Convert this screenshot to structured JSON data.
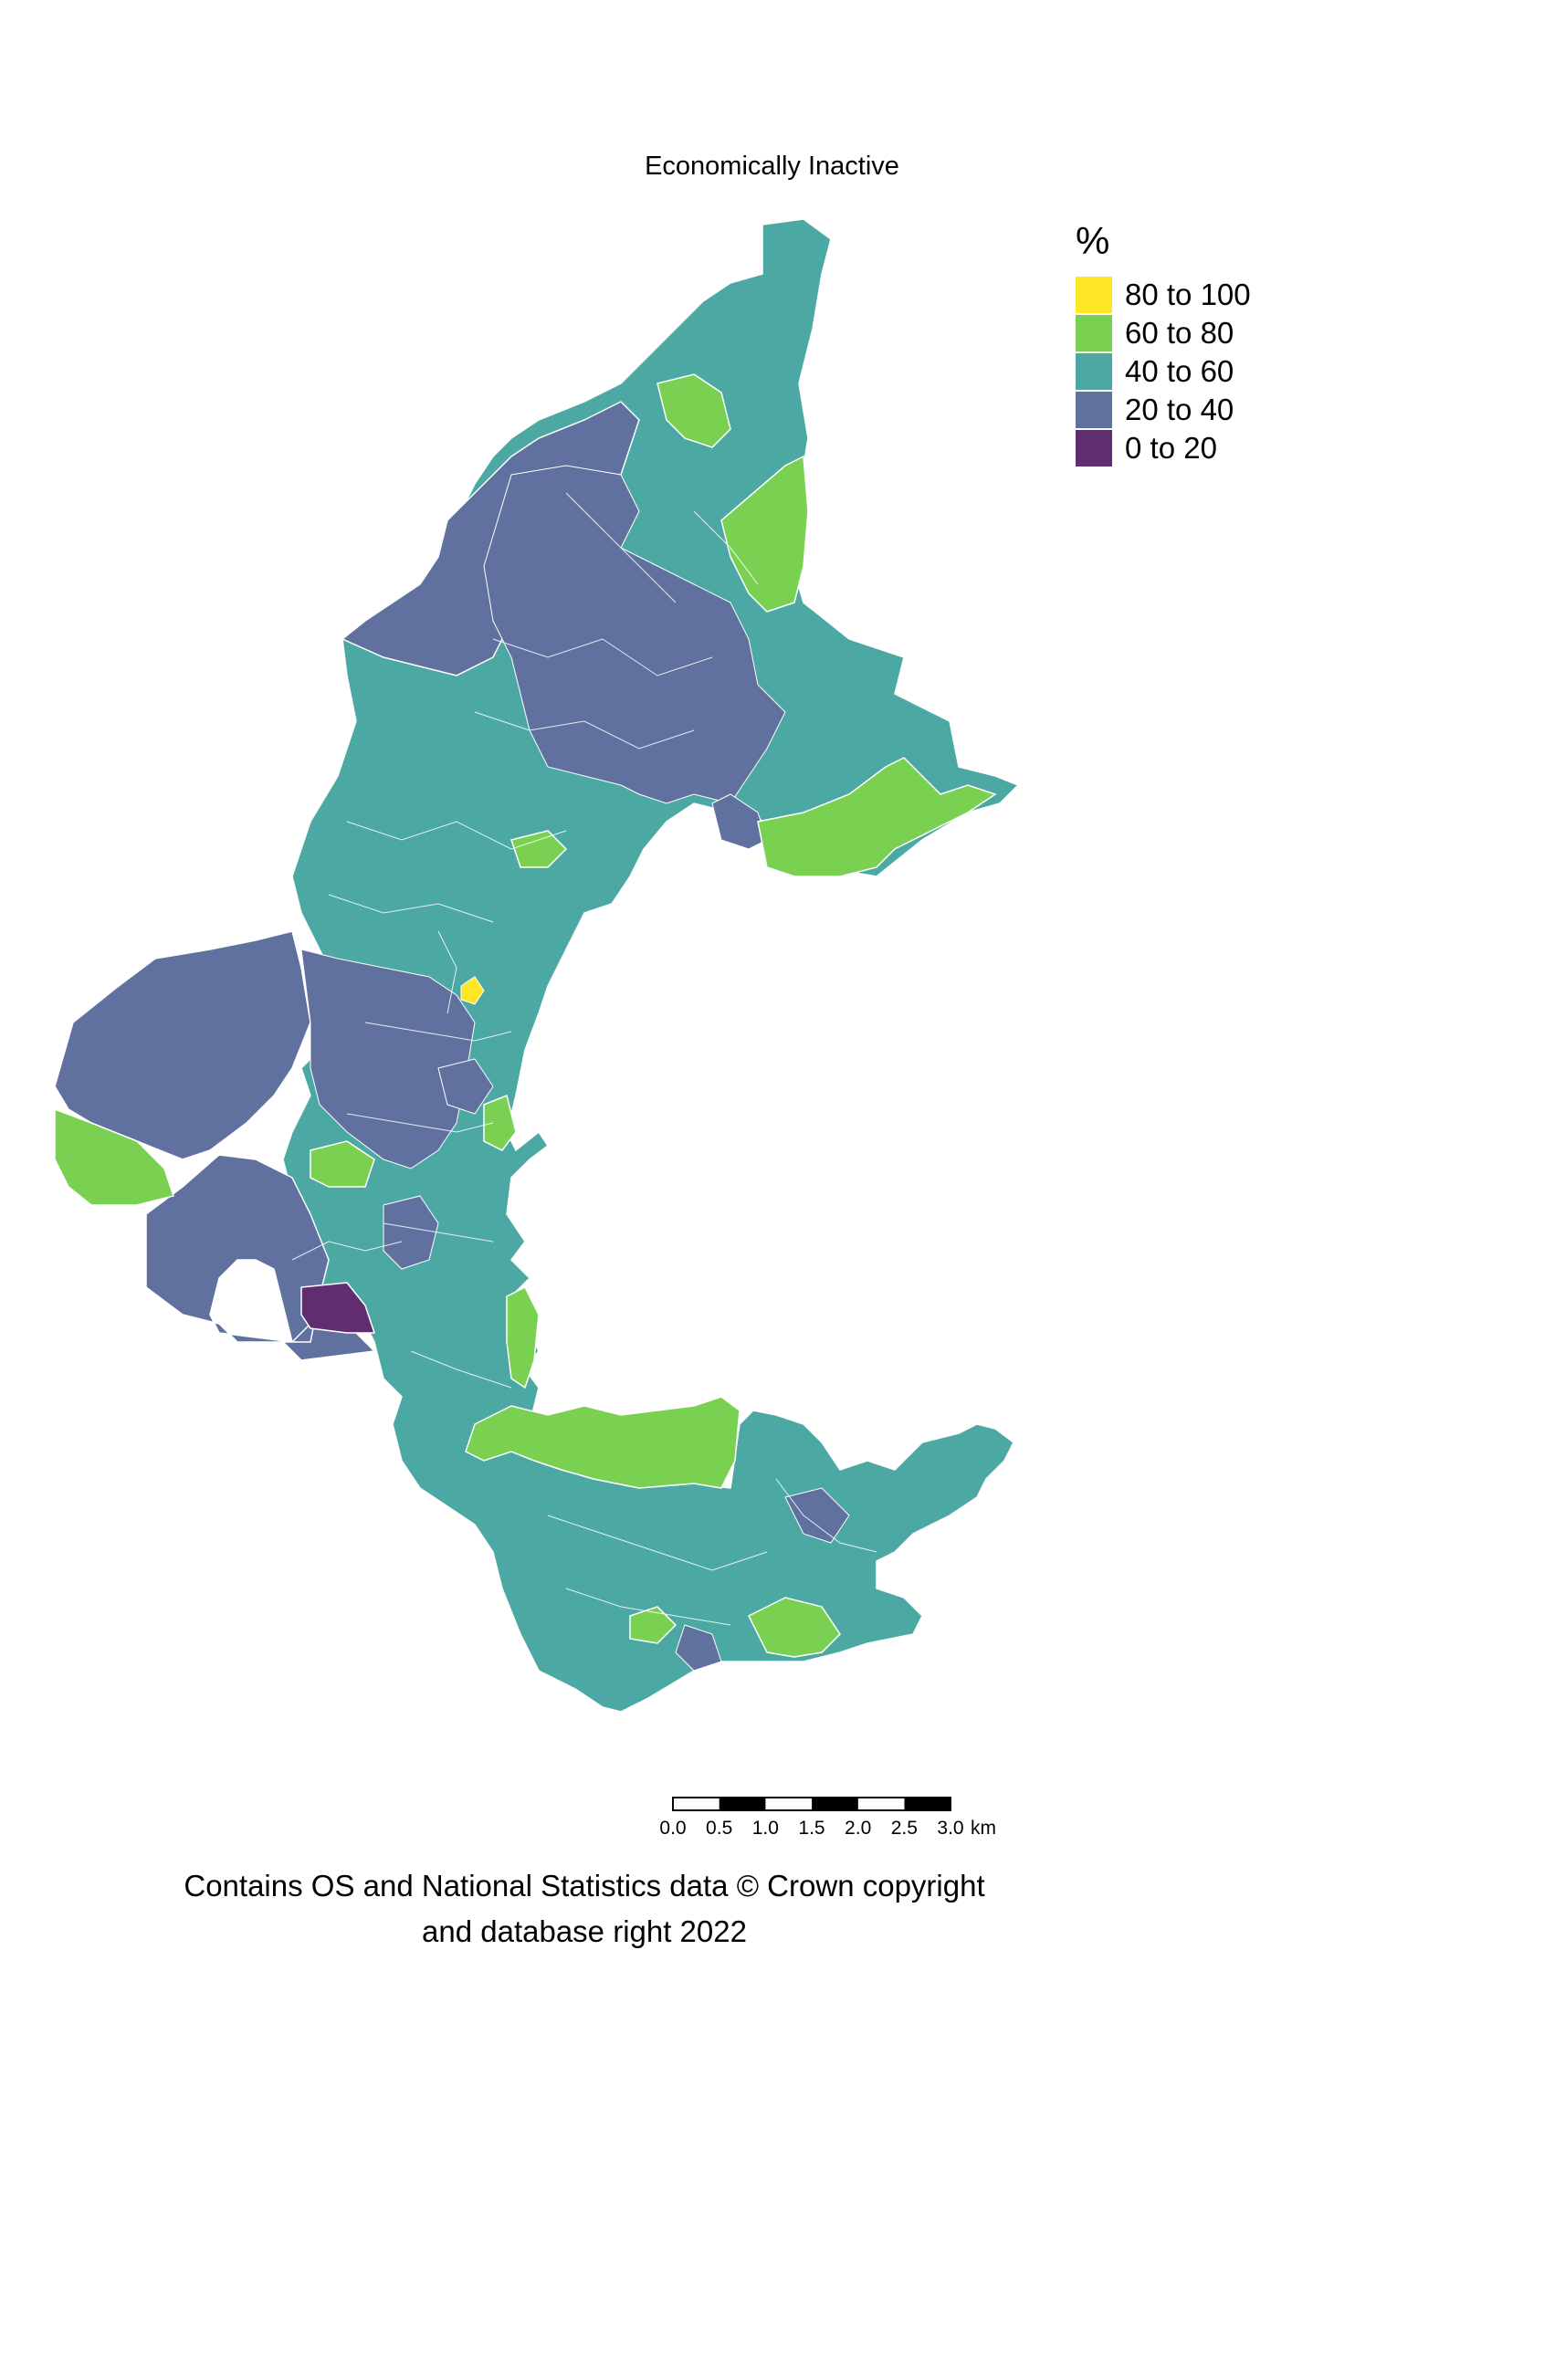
{
  "title": "Economically Inactive",
  "legend": {
    "title": "%",
    "items": [
      {
        "label": "80 to 100",
        "color": "#FDE725"
      },
      {
        "label": "60 to 80",
        "color": "#7AD151"
      },
      {
        "label": "40 to 60",
        "color": "#4BA8A3"
      },
      {
        "label": "20 to 40",
        "color": "#61719F"
      },
      {
        "label": "0 to 20",
        "color": "#5F2D70"
      }
    ]
  },
  "scalebar": {
    "ticks": [
      "0.0",
      "0.5",
      "1.0",
      "1.5",
      "2.0",
      "2.5",
      "3.0"
    ],
    "unit": "km"
  },
  "attribution": {
    "line1": "Contains OS and National Statistics data © Crown copyright",
    "line2": "and database right 2022"
  }
}
